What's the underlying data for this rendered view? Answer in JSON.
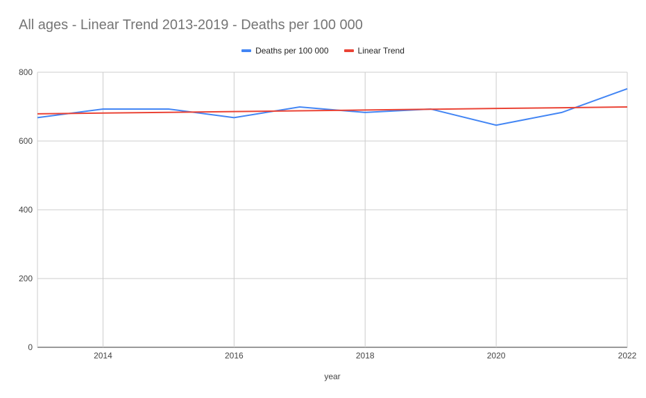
{
  "chart_data": {
    "type": "line",
    "title": "All ages - Linear Trend 2013-2019 - Deaths per 100 000",
    "xlabel": "year",
    "ylabel": "",
    "xlim": [
      2013,
      2022
    ],
    "ylim": [
      0,
      800
    ],
    "x_ticks": [
      "2014",
      "2016",
      "2018",
      "2020",
      "2022"
    ],
    "y_ticks": [
      "0",
      "200",
      "400",
      "600",
      "800"
    ],
    "grid": true,
    "legend_position": "top",
    "x": [
      2013,
      2014,
      2015,
      2016,
      2017,
      2018,
      2019,
      2020,
      2021,
      2022
    ],
    "series": [
      {
        "name": "Deaths per 100 000",
        "color": "#4285f4",
        "values": [
          668,
          693,
          693,
          668,
          699,
          683,
          693,
          646,
          683,
          752
        ]
      },
      {
        "name": "Linear Trend",
        "color": "#ea4335",
        "values": [
          679,
          681.2,
          683.4,
          685.7,
          687.9,
          690.1,
          692.3,
          694.6,
          696.8,
          699
        ]
      }
    ]
  }
}
